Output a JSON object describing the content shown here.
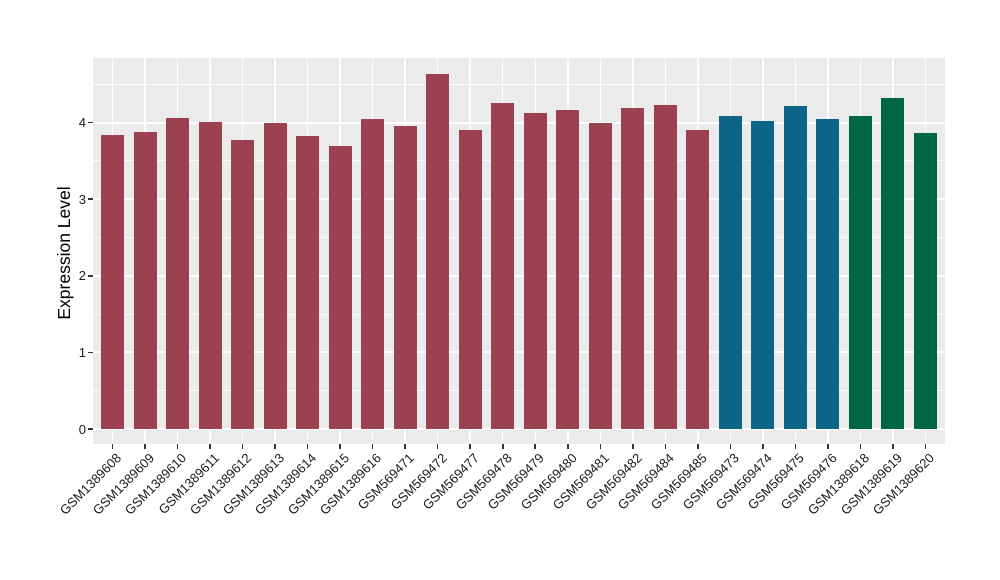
{
  "chart_data": {
    "type": "bar",
    "title": "",
    "xlabel": "",
    "ylabel": "Expression Level",
    "yticks": [
      0,
      1,
      2,
      3,
      4
    ],
    "yticks_minor": [
      0.5,
      1.5,
      2.5,
      3.5,
      4.5
    ],
    "ylim": [
      -0.23,
      4.84
    ],
    "grid": "white major and minor horizontal lines, white vertical line at each category center, on gray panel",
    "legend_position": "none",
    "x_tick_rotation_deg": 45,
    "categories": [
      "GSM1389608",
      "GSM1389609",
      "GSM1389610",
      "GSM1389611",
      "GSM1389612",
      "GSM1389613",
      "GSM1389614",
      "GSM1389615",
      "GSM1389616",
      "GSM569471",
      "GSM569472",
      "GSM569477",
      "GSM569478",
      "GSM569479",
      "GSM569480",
      "GSM569481",
      "GSM569482",
      "GSM569484",
      "GSM569485",
      "GSM569473",
      "GSM569474",
      "GSM569475",
      "GSM569476",
      "GSM1389618",
      "GSM1389619",
      "GSM1389620"
    ],
    "values": [
      3.84,
      3.88,
      4.06,
      4.01,
      3.77,
      4.0,
      3.82,
      3.7,
      4.05,
      3.95,
      4.63,
      3.91,
      4.26,
      4.12,
      4.16,
      3.99,
      4.19,
      4.23,
      3.9,
      4.09,
      4.02,
      4.22,
      4.05,
      4.09,
      4.32,
      3.87
    ],
    "bar_colors": [
      "#9B4150",
      "#9B4150",
      "#9B4150",
      "#9B4150",
      "#9B4150",
      "#9B4150",
      "#9B4150",
      "#9B4150",
      "#9B4150",
      "#9B4150",
      "#9B4150",
      "#9B4150",
      "#9B4150",
      "#9B4150",
      "#9B4150",
      "#9B4150",
      "#9B4150",
      "#9B4150",
      "#9B4150",
      "#0D6587",
      "#0D6587",
      "#0D6587",
      "#0D6587",
      "#006644",
      "#006644",
      "#006644"
    ]
  },
  "style": {
    "panel_bg": "#EBEBEB",
    "grid_color": "#FFFFFF",
    "tick_color": "#333333",
    "axis_text_color": "#1A1A1A",
    "group_colors": {
      "maroon": "#9B4150",
      "teal": "#0D6587",
      "green": "#006644"
    }
  }
}
